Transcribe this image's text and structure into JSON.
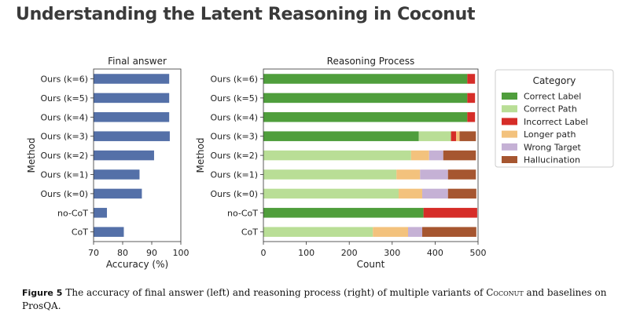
{
  "header": {
    "title": "Understanding the Latent Reasoning in Coconut"
  },
  "caption": {
    "label": "Figure 5",
    "text_before": "The accuracy of final answer (left) and reasoning process (right) of multiple variants of ",
    "method_name": "Coconut",
    "text_after": " and baselines on ProsQA."
  },
  "colors": {
    "accuracy_bar": "#5470a8",
    "Correct Label": "#4f9e3c",
    "Correct Path": "#b9de96",
    "Incorrect Label": "#d62d28",
    "Longer path": "#f3c27d",
    "Wrong Target": "#c5b1d5",
    "Hallucination": "#a65630"
  },
  "chart_data": [
    {
      "type": "bar",
      "orientation": "horizontal",
      "title": "Final answer",
      "xlabel": "Accuracy (%)",
      "ylabel": "Method",
      "categories": [
        "Ours (k=6)",
        "Ours (k=5)",
        "Ours (k=4)",
        "Ours (k=3)",
        "Ours (k=2)",
        "Ours (k=1)",
        "Ours (k=0)",
        "no-CoT",
        "CoT"
      ],
      "values": [
        96.0,
        96.0,
        96.0,
        96.2,
        90.8,
        85.8,
        86.6,
        74.6,
        80.4
      ],
      "xlim": [
        70,
        100
      ],
      "xticks": [
        70,
        80,
        90,
        100
      ],
      "grid": false
    },
    {
      "type": "bar",
      "orientation": "horizontal",
      "stacked": true,
      "title": "Reasoning Process",
      "xlabel": "Count",
      "ylabel": "Method",
      "categories": [
        "Ours (k=6)",
        "Ours (k=5)",
        "Ours (k=4)",
        "Ours (k=3)",
        "Ours (k=2)",
        "Ours (k=1)",
        "Ours (k=0)",
        "no-CoT",
        "CoT"
      ],
      "legend_title": "Category",
      "legend_position": "right",
      "series": [
        {
          "name": "Correct Label",
          "values": [
            475,
            475,
            475,
            362,
            0,
            0,
            0,
            373,
            0
          ]
        },
        {
          "name": "Correct Path",
          "values": [
            0,
            0,
            0,
            75,
            344,
            310,
            315,
            0,
            255
          ]
        },
        {
          "name": "Incorrect Label",
          "values": [
            18,
            18,
            18,
            12,
            0,
            0,
            0,
            125,
            0
          ]
        },
        {
          "name": "Longer path",
          "values": [
            0,
            0,
            0,
            8,
            42,
            55,
            55,
            0,
            82
          ]
        },
        {
          "name": "Wrong Target",
          "values": [
            0,
            0,
            0,
            0,
            33,
            65,
            60,
            0,
            33
          ]
        },
        {
          "name": "Hallucination",
          "values": [
            0,
            0,
            0,
            38,
            76,
            65,
            66,
            0,
            126
          ]
        }
      ],
      "xlim": [
        0,
        500
      ],
      "xticks": [
        0,
        100,
        200,
        300,
        400,
        500
      ],
      "grid": false
    }
  ]
}
